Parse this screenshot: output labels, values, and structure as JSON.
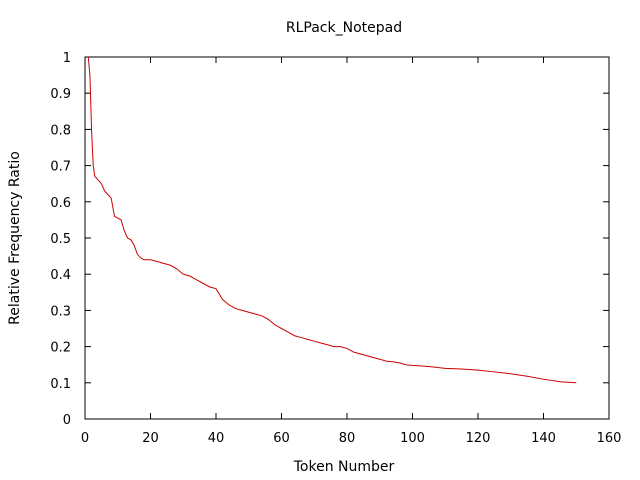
{
  "chart_data": {
    "type": "line",
    "title": "RLPack_Notepad",
    "xlabel": "Token Number",
    "ylabel": "Relative Frequency Ratio",
    "xlim": [
      0,
      160
    ],
    "ylim": [
      0,
      1
    ],
    "xticks": [
      0,
      20,
      40,
      60,
      80,
      100,
      120,
      140,
      160
    ],
    "yticks": [
      0,
      0.1,
      0.2,
      0.3,
      0.4,
      0.5,
      0.6,
      0.7,
      0.8,
      0.9,
      1
    ],
    "xtick_labels": [
      "0",
      "20",
      "40",
      "60",
      "80",
      "100",
      "120",
      "140",
      "160"
    ],
    "ytick_labels": [
      "0",
      "0.1",
      "0.2",
      "0.3",
      "0.4",
      "0.5",
      "0.6",
      "0.7",
      "0.8",
      "0.9",
      "1"
    ],
    "grid": false,
    "legend": "none",
    "series": [
      {
        "color": "#cc0000",
        "x": [
          1,
          1.5,
          2,
          2.5,
          3,
          4,
          5,
          6,
          7,
          8,
          9,
          10,
          11,
          12,
          13,
          14,
          15,
          16,
          17,
          18,
          20,
          22,
          24,
          26,
          28,
          30,
          32,
          34,
          36,
          38,
          40,
          41,
          42,
          44,
          46,
          48,
          50,
          52,
          54,
          56,
          58,
          60,
          62,
          64,
          66,
          68,
          70,
          72,
          74,
          76,
          78,
          80,
          82,
          84,
          86,
          88,
          90,
          92,
          94,
          96,
          98,
          100,
          105,
          110,
          115,
          120,
          125,
          130,
          135,
          140,
          145,
          150
        ],
        "y": [
          1.0,
          0.95,
          0.8,
          0.7,
          0.67,
          0.66,
          0.65,
          0.63,
          0.62,
          0.61,
          0.56,
          0.555,
          0.55,
          0.52,
          0.5,
          0.495,
          0.48,
          0.455,
          0.445,
          0.44,
          0.44,
          0.435,
          0.43,
          0.425,
          0.415,
          0.4,
          0.395,
          0.385,
          0.375,
          0.365,
          0.36,
          0.345,
          0.33,
          0.315,
          0.305,
          0.3,
          0.295,
          0.29,
          0.285,
          0.275,
          0.26,
          0.25,
          0.24,
          0.23,
          0.225,
          0.22,
          0.215,
          0.21,
          0.205,
          0.2,
          0.2,
          0.195,
          0.185,
          0.18,
          0.175,
          0.17,
          0.165,
          0.16,
          0.158,
          0.155,
          0.15,
          0.148,
          0.145,
          0.14,
          0.138,
          0.135,
          0.13,
          0.125,
          0.118,
          0.11,
          0.103,
          0.1
        ]
      }
    ]
  }
}
